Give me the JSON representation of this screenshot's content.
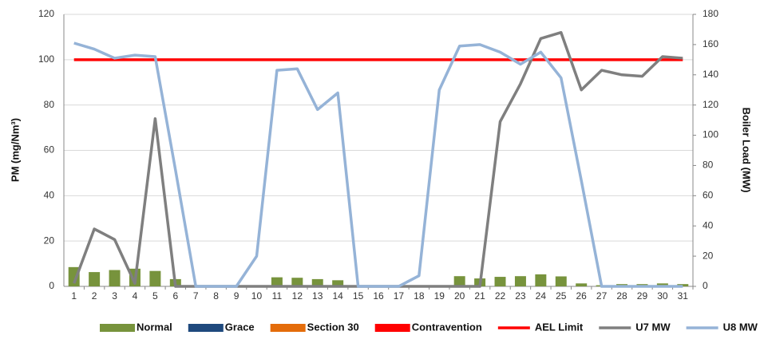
{
  "chart_data": {
    "type": "combo",
    "y_label": "PM (mg/Nm³)",
    "y2_label": "Boiler Load (MW)",
    "categories": [
      "1",
      "2",
      "3",
      "4",
      "5",
      "6",
      "7",
      "8",
      "9",
      "10",
      "11",
      "12",
      "13",
      "14",
      "15",
      "16",
      "17",
      "18",
      "19",
      "20",
      "21",
      "22",
      "23",
      "24",
      "25",
      "26",
      "27",
      "28",
      "29",
      "30",
      "31"
    ],
    "ylim": [
      0,
      120
    ],
    "yticks": [
      0,
      20,
      40,
      60,
      80,
      100,
      120
    ],
    "y2lim": [
      0,
      180
    ],
    "y2ticks": [
      0,
      20,
      40,
      60,
      80,
      100,
      120,
      140,
      160,
      180
    ],
    "grid": true,
    "legend": "bottom",
    "series": [
      {
        "name": "Normal",
        "type": "bar",
        "color": "#77933c",
        "values": [
          8.5,
          6.3,
          7.2,
          7.8,
          6.8,
          3.2,
          0,
          0,
          0,
          0,
          4,
          3.8,
          3.2,
          2.7,
          0,
          0,
          0,
          0,
          0,
          4.5,
          3.5,
          4.2,
          4.5,
          5.3,
          4.4,
          1.3,
          0.5,
          1,
          1,
          1.3,
          1
        ]
      },
      {
        "name": "Grace",
        "type": "bar",
        "color": "#1f497d",
        "values": [
          0,
          0,
          0,
          0,
          0,
          0,
          0,
          0,
          0,
          0,
          0,
          0,
          0,
          0,
          0,
          0,
          0,
          0,
          0,
          0,
          0,
          0,
          0,
          0,
          0,
          0,
          0,
          0,
          0,
          0,
          0
        ]
      },
      {
        "name": "Section 30",
        "type": "bar",
        "color": "#e46c0a",
        "values": [
          0,
          0,
          0,
          0,
          0,
          0,
          0,
          0,
          0,
          0,
          0,
          0,
          0,
          0,
          0,
          0,
          0,
          0,
          0,
          0,
          0,
          0,
          0,
          0,
          0,
          0,
          0,
          0,
          0,
          0,
          0
        ]
      },
      {
        "name": "Contravention",
        "type": "bar",
        "color": "#ff0000",
        "values": [
          0,
          0,
          0,
          0,
          0,
          0,
          0,
          0,
          0,
          0,
          0,
          0,
          0,
          0,
          0,
          0,
          0,
          0,
          0,
          0,
          0,
          0,
          0,
          0,
          0,
          0,
          0,
          0,
          0,
          0,
          0
        ]
      },
      {
        "name": "AEL Limit",
        "type": "line",
        "color": "#ff0000",
        "values": [
          100,
          100,
          100,
          100,
          100,
          100,
          100,
          100,
          100,
          100,
          100,
          100,
          100,
          100,
          100,
          100,
          100,
          100,
          100,
          100,
          100,
          100,
          100,
          100,
          100,
          100,
          100,
          100,
          100,
          100,
          100
        ]
      },
      {
        "name": "U7 MW",
        "type": "line",
        "axis": "y2",
        "color": "#7f7f7f",
        "values": [
          2,
          38,
          31,
          2,
          111,
          0,
          0,
          0,
          0,
          0,
          0,
          0,
          0,
          0,
          0,
          0,
          0,
          0,
          0,
          0,
          0,
          109,
          134,
          164,
          168,
          130,
          143,
          140,
          139,
          152,
          151
        ]
      },
      {
        "name": "U8 MW",
        "type": "line",
        "axis": "y2",
        "color": "#95b3d7",
        "values": [
          161,
          157,
          151,
          153,
          152,
          77,
          0,
          0,
          0,
          20,
          143,
          144,
          117,
          128,
          0,
          0,
          0,
          7,
          130,
          159,
          160,
          155,
          147,
          155,
          138,
          70,
          0,
          0,
          0,
          0,
          0
        ]
      }
    ]
  }
}
